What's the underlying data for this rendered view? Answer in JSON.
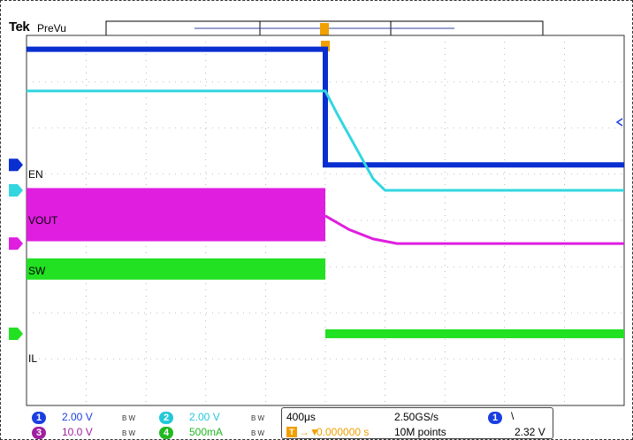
{
  "header": {
    "brand": "Tek",
    "mode": "PreVu"
  },
  "colors": {
    "ch1": "#0a2fd0",
    "ch2": "#33d6e0",
    "ch3": "#e01ee0",
    "ch4": "#22e022",
    "trigger": "#f0a000",
    "grid": "#888888"
  },
  "channel_labels": {
    "ch1": "EN",
    "ch2": "VOUT",
    "ch3": "SW",
    "ch4": "IL"
  },
  "readouts": {
    "ch1": {
      "num": "1",
      "scale": "2.00 V"
    },
    "ch2": {
      "num": "2",
      "scale": "2.00 V"
    },
    "ch3": {
      "num": "3",
      "scale": "10.0 V"
    },
    "ch4": {
      "num": "4",
      "scale": "500mA"
    },
    "bw": "B W",
    "timebase": "400μs",
    "sample_rate": "2.50GS/s",
    "trig_offset": "0.000000 s",
    "record_length": "10M points",
    "trig_channel": "1",
    "trig_slope": "\\",
    "trig_level": "2.32 V"
  },
  "chart_data": {
    "type": "line",
    "x_divisions": 10,
    "y_divisions": 8,
    "x_unit": "div",
    "trigger_x": 5.0,
    "series": [
      {
        "name": "EN",
        "channel": 1,
        "kind": "step",
        "x": [
          0,
          5.0,
          5.0,
          10
        ],
        "y": [
          7.7,
          7.7,
          5.2,
          5.2
        ]
      },
      {
        "name": "VOUT",
        "channel": 2,
        "kind": "decay",
        "x": [
          0,
          5.0,
          5.2,
          5.5,
          5.8,
          6.0,
          10
        ],
        "y": [
          6.8,
          6.8,
          6.3,
          5.6,
          4.9,
          4.65,
          4.65
        ]
      },
      {
        "name": "SW",
        "channel": 3,
        "kind": "band",
        "x": [
          0,
          5.0
        ],
        "y_low": [
          3.55,
          3.55
        ],
        "y_high": [
          4.7,
          4.7
        ],
        "tail_x": [
          5.0,
          5.4,
          5.8,
          6.2,
          10
        ],
        "tail_y": [
          4.1,
          3.8,
          3.6,
          3.5,
          3.5
        ]
      },
      {
        "name": "IL",
        "channel": 4,
        "kind": "noise",
        "x": [
          0,
          5.0,
          5.0,
          10
        ],
        "y": [
          2.95,
          2.95,
          1.55,
          1.55
        ]
      }
    ]
  }
}
